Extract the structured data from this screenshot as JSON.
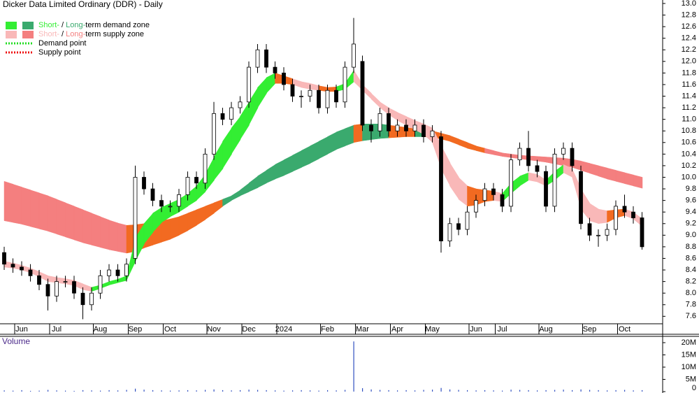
{
  "chart_data": {
    "type": "candlestick",
    "title": "Dicker Data Limited Ordinary (DDR) - Daily",
    "legend": [
      {
        "colors": [
          "#33ee33",
          "#3aaa6e"
        ],
        "parts": [
          {
            "text": "Short-",
            "color": "#33ee33"
          },
          {
            "text": " / "
          },
          {
            "text": "Long-",
            "color": "#3aaa6e"
          },
          {
            "text": "term demand zone"
          }
        ]
      },
      {
        "colors": [
          "#f9b8b8",
          "#f47f7f"
        ],
        "parts": [
          {
            "text": "Short-",
            "color": "#f9b8b8"
          },
          {
            "text": " / "
          },
          {
            "text": "Long-",
            "color": "#f47f7f"
          },
          {
            "text": "term supply zone"
          }
        ]
      },
      {
        "line_color": "#22dd22",
        "parts": [
          {
            "text": "Demand point"
          }
        ]
      },
      {
        "line_color": "#ee1111",
        "parts": [
          {
            "text": "Supply point"
          }
        ]
      }
    ],
    "categories": [
      null,
      null,
      "Jun",
      null,
      null,
      null,
      "Jul",
      null,
      null,
      null,
      null,
      "Aug",
      null,
      null,
      null,
      "Sep",
      null,
      null,
      null,
      "Oct",
      null,
      null,
      null,
      null,
      "Nov",
      null,
      null,
      null,
      "Dec",
      null,
      null,
      null,
      "2024",
      null,
      null,
      null,
      null,
      "Feb",
      null,
      null,
      null,
      "Mar",
      null,
      null,
      null,
      "Apr",
      null,
      null,
      null,
      "May",
      null,
      null,
      null,
      null,
      "Jun",
      null,
      null,
      "Jul",
      null,
      null,
      null,
      null,
      "Aug",
      null,
      null,
      null,
      null,
      "Sep",
      null,
      null,
      null,
      "Oct",
      null,
      null
    ],
    "open": [
      8.7,
      8.5,
      8.45,
      8.4,
      8.3,
      8.15,
      7.95,
      8.2,
      8.2,
      8.0,
      7.8,
      8.0,
      8.3,
      8.4,
      8.3,
      8.6,
      10.0,
      9.8,
      9.6,
      9.5,
      9.5,
      9.7,
      10.0,
      9.9,
      10.4,
      11.1,
      11.0,
      11.2,
      11.3,
      11.9,
      12.2,
      11.9,
      11.8,
      11.6,
      11.4,
      11.4,
      11.5,
      11.2,
      11.5,
      11.3,
      11.9,
      12.0,
      10.9,
      10.8,
      11.1,
      10.8,
      10.9,
      10.8,
      10.9,
      10.7,
      10.7,
      8.9,
      9.2,
      9.1,
      9.4,
      9.6,
      9.8,
      9.7,
      9.5,
      10.3,
      10.5,
      10.2,
      10.1,
      9.5,
      10.4,
      10.5,
      10.1,
      9.2,
      9.0,
      9.0,
      9.1,
      9.5,
      9.4,
      9.3
    ],
    "high": [
      8.8,
      8.6,
      8.55,
      8.5,
      8.4,
      8.25,
      8.3,
      8.3,
      8.3,
      8.1,
      8.1,
      8.4,
      8.5,
      8.5,
      8.6,
      10.2,
      10.1,
      9.9,
      9.7,
      9.6,
      9.8,
      10.1,
      10.1,
      10.5,
      11.3,
      11.2,
      11.3,
      11.4,
      12.0,
      12.3,
      12.3,
      12.0,
      11.9,
      11.7,
      11.5,
      11.6,
      11.6,
      11.6,
      11.6,
      12.0,
      12.75,
      12.1,
      11.0,
      11.2,
      11.2,
      11.0,
      11.0,
      11.0,
      11.0,
      10.9,
      10.8,
      9.3,
      9.3,
      9.5,
      9.7,
      9.9,
      9.9,
      9.8,
      10.4,
      10.6,
      10.8,
      10.3,
      10.2,
      10.5,
      10.6,
      10.6,
      10.2,
      9.3,
      9.1,
      9.2,
      9.6,
      9.7,
      9.5,
      9.4
    ],
    "low": [
      8.4,
      8.35,
      8.3,
      8.2,
      8.05,
      7.7,
      7.85,
      8.1,
      7.9,
      7.55,
      7.7,
      7.9,
      8.2,
      8.2,
      8.2,
      8.5,
      9.7,
      9.5,
      9.4,
      9.4,
      9.4,
      9.6,
      9.8,
      9.8,
      10.3,
      10.9,
      10.9,
      11.1,
      11.2,
      11.8,
      11.8,
      11.7,
      11.5,
      11.3,
      11.2,
      11.3,
      11.1,
      11.1,
      11.2,
      11.2,
      11.8,
      10.8,
      10.6,
      10.7,
      10.7,
      10.7,
      10.7,
      10.7,
      10.6,
      10.6,
      8.7,
      8.8,
      9.0,
      9.0,
      9.3,
      9.5,
      9.6,
      9.4,
      9.4,
      10.2,
      10.1,
      10.0,
      9.4,
      9.4,
      10.3,
      10.1,
      9.1,
      8.9,
      8.8,
      8.9,
      9.0,
      9.3,
      9.2,
      8.75
    ],
    "close": [
      8.5,
      8.45,
      8.4,
      8.3,
      8.15,
      7.95,
      8.2,
      8.2,
      8.0,
      7.8,
      8.0,
      8.3,
      8.4,
      8.3,
      8.5,
      10.0,
      9.8,
      9.6,
      9.5,
      9.5,
      9.7,
      10.0,
      9.9,
      10.4,
      11.1,
      11.0,
      11.2,
      11.3,
      11.9,
      12.2,
      11.9,
      11.8,
      11.6,
      11.4,
      11.4,
      11.5,
      11.2,
      11.5,
      11.3,
      11.9,
      12.3,
      10.9,
      10.8,
      11.1,
      10.8,
      10.9,
      10.8,
      10.9,
      10.7,
      10.8,
      8.9,
      9.2,
      9.1,
      9.4,
      9.6,
      9.8,
      9.7,
      9.5,
      10.3,
      10.5,
      10.2,
      10.1,
      9.5,
      10.4,
      10.5,
      10.2,
      9.2,
      9.0,
      9.0,
      9.1,
      9.5,
      9.4,
      9.3,
      8.8
    ],
    "long_zone": {
      "upper": [
        9.93,
        9.88,
        9.83,
        9.78,
        9.73,
        9.68,
        9.62,
        9.56,
        9.5,
        9.44,
        9.38,
        9.32,
        9.26,
        9.21,
        9.17,
        9.18,
        9.2,
        9.22,
        9.25,
        9.28,
        9.32,
        9.38,
        9.44,
        9.5,
        9.56,
        9.62,
        9.68,
        9.78,
        9.9,
        10.02,
        10.12,
        10.22,
        10.3,
        10.38,
        10.46,
        10.54,
        10.62,
        10.7,
        10.78,
        10.84,
        10.9,
        10.92,
        10.92,
        10.92,
        10.9,
        10.88,
        10.86,
        10.84,
        10.82,
        10.8,
        10.76,
        10.72,
        10.66,
        10.6,
        10.54,
        10.5,
        10.46,
        10.42,
        10.4,
        10.38,
        10.37,
        10.36,
        10.35,
        10.34,
        10.33,
        10.31,
        10.28,
        10.24,
        10.2,
        10.16,
        10.12,
        10.08,
        10.04,
        10.0
      ],
      "lower": [
        9.25,
        9.22,
        9.19,
        9.15,
        9.11,
        9.07,
        9.02,
        8.97,
        8.92,
        8.87,
        8.83,
        8.79,
        8.75,
        8.72,
        8.69,
        8.72,
        8.78,
        8.83,
        8.88,
        8.93,
        9.0,
        9.08,
        9.17,
        9.27,
        9.38,
        9.5,
        9.6,
        9.68,
        9.75,
        9.82,
        9.9,
        9.97,
        10.03,
        10.1,
        10.17,
        10.24,
        10.32,
        10.4,
        10.48,
        10.54,
        10.6,
        10.63,
        10.65,
        10.67,
        10.68,
        10.69,
        10.7,
        10.7,
        10.7,
        10.69,
        10.66,
        10.62,
        10.56,
        10.5,
        10.46,
        10.42,
        10.39,
        10.36,
        10.34,
        10.32,
        10.3,
        10.28,
        10.26,
        10.23,
        10.2,
        10.17,
        10.12,
        10.07,
        10.02,
        9.97,
        9.93,
        9.89,
        9.85,
        9.81
      ],
      "colors": [
        "#f47f7f",
        "#f47f7f",
        "#f47f7f",
        "#f47f7f",
        "#f47f7f",
        "#f47f7f",
        "#f47f7f",
        "#f47f7f",
        "#f47f7f",
        "#f47f7f",
        "#f47f7f",
        "#f47f7f",
        "#f47f7f",
        "#f47f7f",
        "#f47f7f",
        "#f26a21",
        "#f26a21",
        "#f26a21",
        "#f26a21",
        "#f26a21",
        "#f26a21",
        "#f26a21",
        "#f26a21",
        "#f26a21",
        "#f26a21",
        "#f26a21",
        "#3aaa6e",
        "#3aaa6e",
        "#3aaa6e",
        "#3aaa6e",
        "#3aaa6e",
        "#3aaa6e",
        "#3aaa6e",
        "#3aaa6e",
        "#3aaa6e",
        "#3aaa6e",
        "#3aaa6e",
        "#3aaa6e",
        "#3aaa6e",
        "#3aaa6e",
        "#3aaa6e",
        "#f26a21",
        "#3aaa6e",
        "#3aaa6e",
        "#3aaa6e",
        "#f26a21",
        "#f26a21",
        "#f26a21",
        "#3aaa6e",
        "#f26a21",
        "#f26a21",
        "#f26a21",
        "#f26a21",
        "#f26a21",
        "#f26a21",
        "#f26a21",
        "#f47f7f",
        "#f47f7f",
        "#f47f7f",
        "#f47f7f",
        "#f47f7f",
        "#f47f7f",
        "#f47f7f",
        "#f47f7f",
        "#f47f7f",
        "#f47f7f",
        "#f47f7f",
        "#f47f7f",
        "#f47f7f",
        "#f47f7f",
        "#f47f7f",
        "#f47f7f",
        "#f47f7f",
        "#f47f7f"
      ]
    },
    "short_zone": {
      "upper": [
        8.55,
        8.52,
        8.48,
        8.43,
        8.37,
        8.3,
        8.27,
        8.25,
        8.22,
        8.16,
        8.1,
        8.14,
        8.2,
        8.24,
        8.3,
        8.95,
        9.2,
        9.38,
        9.48,
        9.55,
        9.62,
        9.72,
        9.85,
        10.05,
        10.35,
        10.62,
        10.85,
        11.05,
        11.3,
        11.55,
        11.72,
        11.8,
        11.75,
        11.7,
        11.65,
        11.62,
        11.58,
        11.55,
        11.56,
        11.62,
        11.85,
        11.6,
        11.45,
        11.3,
        11.2,
        11.12,
        11.05,
        10.98,
        10.92,
        10.85,
        10.55,
        10.25,
        10.0,
        9.85,
        9.8,
        9.78,
        9.76,
        9.72,
        9.9,
        10.02,
        10.08,
        10.05,
        9.95,
        10.1,
        10.22,
        10.15,
        9.8,
        9.55,
        9.45,
        9.42,
        9.44,
        9.45,
        9.4,
        9.28
      ],
      "lower": [
        8.45,
        8.43,
        8.4,
        8.35,
        8.28,
        8.2,
        8.18,
        8.16,
        8.13,
        8.06,
        8.03,
        8.08,
        8.14,
        8.18,
        8.22,
        8.55,
        8.85,
        9.05,
        9.22,
        9.32,
        9.4,
        9.5,
        9.6,
        9.75,
        9.95,
        10.15,
        10.4,
        10.65,
        10.9,
        11.2,
        11.45,
        11.62,
        11.62,
        11.6,
        11.55,
        11.52,
        11.5,
        11.48,
        11.48,
        11.52,
        11.65,
        11.5,
        11.35,
        11.2,
        11.08,
        10.98,
        10.9,
        10.82,
        10.74,
        10.6,
        10.15,
        9.85,
        9.62,
        9.5,
        9.52,
        9.58,
        9.6,
        9.58,
        9.72,
        9.85,
        9.95,
        9.92,
        9.85,
        9.95,
        10.08,
        10.0,
        9.45,
        9.25,
        9.2,
        9.22,
        9.3,
        9.34,
        9.28,
        9.15
      ],
      "colors": [
        "#f9b8b8",
        "#f9b8b8",
        "#f9b8b8",
        "#f9b8b8",
        "#f9b8b8",
        "#f9b8b8",
        "#f9b8b8",
        "#f9b8b8",
        "#f9b8b8",
        "#f9b8b8",
        "#f9b8b8",
        "#33ee33",
        "#33ee33",
        "#33ee33",
        "#33ee33",
        "#33ee33",
        "#33ee33",
        "#33ee33",
        "#33ee33",
        "#33ee33",
        "#33ee33",
        "#33ee33",
        "#33ee33",
        "#33ee33",
        "#33ee33",
        "#33ee33",
        "#33ee33",
        "#33ee33",
        "#33ee33",
        "#33ee33",
        "#33ee33",
        "#33ee33",
        "#f26a21",
        "#f26a21",
        "#f9b8b8",
        "#f9b8b8",
        "#f9b8b8",
        "#f26a21",
        "#f26a21",
        "#33ee33",
        "#33ee33",
        "#f9b8b8",
        "#f9b8b8",
        "#f9b8b8",
        "#f9b8b8",
        "#f9b8b8",
        "#f9b8b8",
        "#f9b8b8",
        "#f9b8b8",
        "#f9b8b8",
        "#f9b8b8",
        "#f9b8b8",
        "#f9b8b8",
        "#f9b8b8",
        "#f26a21",
        "#f26a21",
        "#f26a21",
        "#f9b8b8",
        "#33ee33",
        "#33ee33",
        "#33ee33",
        "#f9b8b8",
        "#f9b8b8",
        "#33ee33",
        "#33ee33",
        "#f9b8b8",
        "#f9b8b8",
        "#f9b8b8",
        "#f9b8b8",
        "#f9b8b8",
        "#f26a21",
        "#f26a21",
        "#f9b8b8",
        "#f9b8b8"
      ]
    },
    "ylim": [
      7.29,
      13.06
    ],
    "yticks": [
      7.6,
      7.8,
      {
        "value": 8,
        "label": "8.0"
      },
      8.2,
      8.4,
      8.6,
      8.8,
      {
        "value": 9,
        "label": "9.0"
      },
      9.2,
      9.4,
      9.6,
      9.8,
      {
        "value": 10,
        "label": "10.0"
      },
      10.2,
      10.4,
      10.6,
      10.8,
      {
        "value": 11,
        "label": "11.0"
      },
      11.2,
      11.4,
      11.6,
      11.8,
      {
        "value": 12,
        "label": "12.0"
      },
      12.2,
      12.4,
      12.6,
      12.8,
      {
        "value": 13,
        "label": "13.0"
      }
    ],
    "volume": {
      "label": "Volume",
      "color": "#3050c0",
      "values": [
        500000,
        400000,
        600000,
        300000,
        400000,
        700000,
        500000,
        400000,
        300000,
        600000,
        500000,
        400000,
        600000,
        500000,
        700000,
        1200000,
        800000,
        600000,
        500000,
        400000,
        500000,
        600000,
        500000,
        700000,
        900000,
        600000,
        500000,
        600000,
        800000,
        700000,
        600000,
        500000,
        400000,
        500000,
        600000,
        500000,
        400000,
        600000,
        500000,
        700000,
        20500000,
        1400000,
        900000,
        700000,
        600000,
        500000,
        600000,
        500000,
        700000,
        800000,
        1500000,
        900000,
        700000,
        600000,
        500000,
        600000,
        500000,
        400000,
        800000,
        700000,
        600000,
        500000,
        600000,
        700000,
        800000,
        600000,
        900000,
        700000,
        600000,
        500000,
        600000,
        700000,
        500000,
        600000
      ],
      "ylim": [
        0,
        22570000
      ],
      "yticks": [
        0,
        {
          "value": 5000000,
          "label": "5M"
        },
        {
          "value": 10000000,
          "label": "10M"
        },
        {
          "value": 15000000,
          "label": "15M"
        },
        {
          "value": 20000000,
          "label": "20M"
        }
      ]
    }
  }
}
